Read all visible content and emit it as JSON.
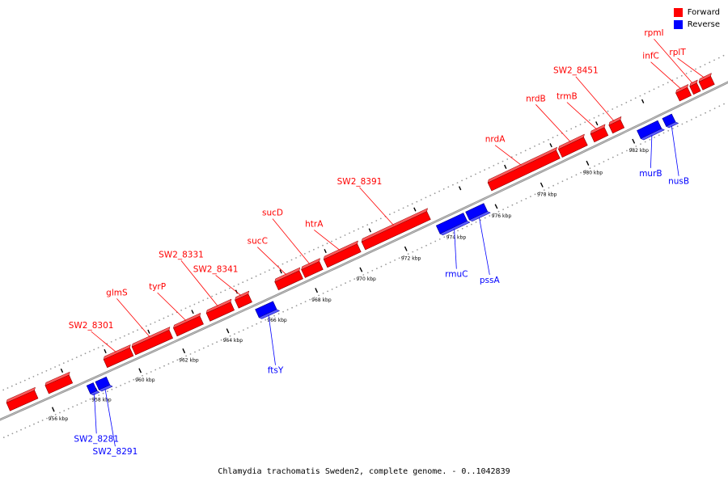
{
  "legend": {
    "forward_label": "Forward",
    "forward_color": "#ff0000",
    "reverse_label": "Reverse",
    "reverse_color": "#0000ff"
  },
  "caption": "Chlamydia trachomatis Sweden2, complete genome. - 0..1042839",
  "axis": {
    "ticks": [
      {
        "kbp": 956,
        "label": "956 kbp"
      },
      {
        "kbp": 958,
        "label": "958 kbp"
      },
      {
        "kbp": 960,
        "label": "960 kbp"
      },
      {
        "kbp": 962,
        "label": "962 kbp"
      },
      {
        "kbp": 964,
        "label": "964 kbp"
      },
      {
        "kbp": 966,
        "label": "966 kbp"
      },
      {
        "kbp": 968,
        "label": "968 kbp"
      },
      {
        "kbp": 970,
        "label": "970 kbp"
      },
      {
        "kbp": 972,
        "label": "972 kbp"
      },
      {
        "kbp": 974,
        "label": "974 kbp"
      },
      {
        "kbp": 976,
        "label": "976 kbp"
      },
      {
        "kbp": 978,
        "label": "978 kbp"
      },
      {
        "kbp": 980,
        "label": "980 kbp"
      },
      {
        "kbp": 982,
        "label": "982 kbp"
      }
    ]
  },
  "genes": [
    {
      "name": "",
      "strand": "forward",
      "start": 954.3,
      "end": 955.6
    },
    {
      "name": "",
      "strand": "forward",
      "start": 956.1,
      "end": 957.2
    },
    {
      "name": "SW2_8281",
      "strand": "reverse",
      "start": 957.7,
      "end": 958.0
    },
    {
      "name": "SW2_8291",
      "strand": "reverse",
      "start": 958.1,
      "end": 958.6
    },
    {
      "name": "SW2_8301",
      "strand": "forward",
      "start": 958.8,
      "end": 960.0
    },
    {
      "name": "glmS",
      "strand": "forward",
      "start": 960.1,
      "end": 961.8
    },
    {
      "name": "tyrP",
      "strand": "forward",
      "start": 962.0,
      "end": 963.2
    },
    {
      "name": "SW2_8331",
      "strand": "forward",
      "start": 963.5,
      "end": 964.6
    },
    {
      "name": "SW2_8341",
      "strand": "forward",
      "start": 964.8,
      "end": 965.4
    },
    {
      "name": "ftsY",
      "strand": "reverse",
      "start": 965.4,
      "end": 966.2
    },
    {
      "name": "sucC",
      "strand": "forward",
      "start": 966.6,
      "end": 967.7
    },
    {
      "name": "sucD",
      "strand": "forward",
      "start": 967.8,
      "end": 968.6
    },
    {
      "name": "htrA",
      "strand": "forward",
      "start": 968.8,
      "end": 970.3
    },
    {
      "name": "SW2_8391",
      "strand": "forward",
      "start": 970.5,
      "end": 973.4
    },
    {
      "name": "rmuC",
      "strand": "reverse",
      "start": 973.5,
      "end": 974.7
    },
    {
      "name": "pssA",
      "strand": "reverse",
      "start": 974.8,
      "end": 975.6
    },
    {
      "name": "nrdA",
      "strand": "forward",
      "start": 976.1,
      "end": 979.1
    },
    {
      "name": "nrdB",
      "strand": "forward",
      "start": 979.2,
      "end": 980.3
    },
    {
      "name": "trmB",
      "strand": "forward",
      "start": 980.6,
      "end": 981.2
    },
    {
      "name": "SW2_8451",
      "strand": "forward",
      "start": 981.4,
      "end": 981.9
    },
    {
      "name": "murB",
      "strand": "reverse",
      "start": 982.3,
      "end": 983.2
    },
    {
      "name": "nusB",
      "strand": "reverse",
      "start": 983.4,
      "end": 983.8
    },
    {
      "name": "infC",
      "strand": "forward",
      "start": 984.3,
      "end": 984.8
    },
    {
      "name": "rpmI",
      "strand": "forward",
      "start": 984.9,
      "end": 985.2
    },
    {
      "name": "rplT",
      "strand": "forward",
      "start": 985.3,
      "end": 985.8
    }
  ]
}
